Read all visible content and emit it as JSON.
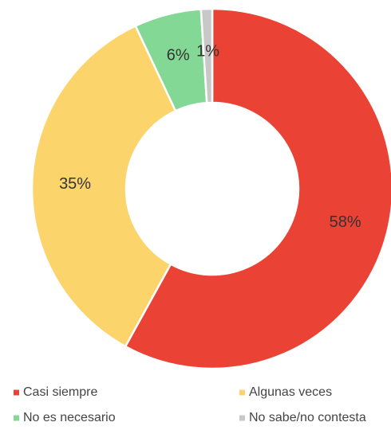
{
  "chart_data": {
    "type": "donut",
    "categories": [
      "Casi siempre",
      "Algunas veces",
      "No es necesario",
      "No sabe/no contesta"
    ],
    "values": [
      58,
      35,
      6,
      1
    ],
    "value_labels": [
      "58%",
      "35%",
      "6%",
      "1%"
    ],
    "colors": [
      "#ea4335",
      "#fbd46b",
      "#82d894",
      "#c8c8c8"
    ],
    "legend": "bottom"
  }
}
